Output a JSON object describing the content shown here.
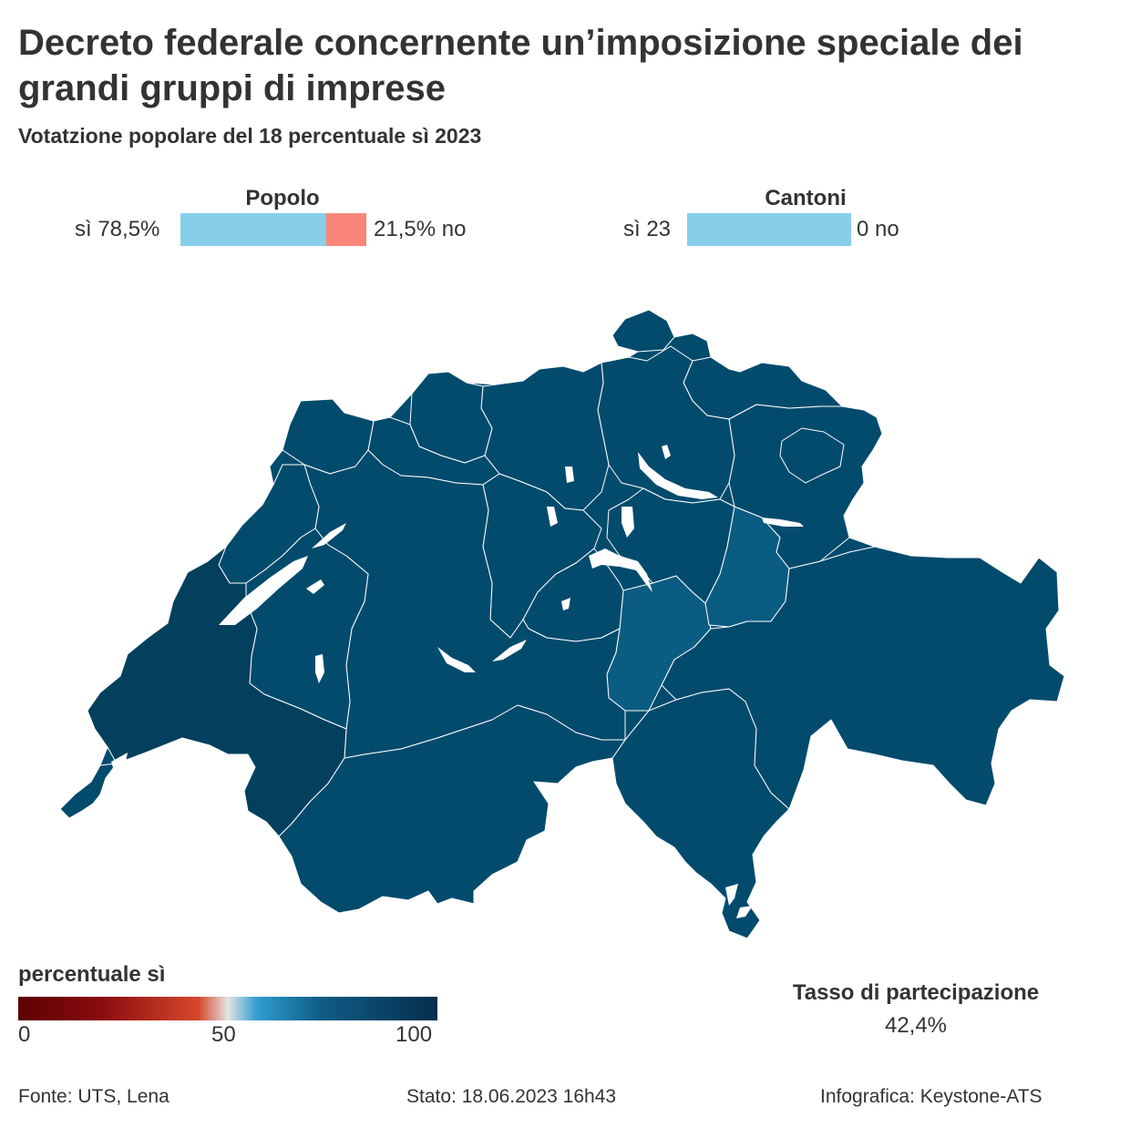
{
  "title": "Decreto federale concernente un’imposizione speciale dei grandi gruppi di imprese",
  "subtitle": "Votatzione popolare del 18 percentuale sì 2023",
  "people": {
    "heading": "Popolo",
    "yes_label": "sì 78,5%",
    "no_label": "21,5% no",
    "yes_percent": 78.5,
    "no_percent": 21.5
  },
  "cantons": {
    "heading": "Cantoni",
    "yes_label": "sì 23",
    "no_label": "0 no",
    "yes_count": 23,
    "no_count": 0
  },
  "colors": {
    "yes": "#87ceeb",
    "no": "#f98679",
    "map_main": "#024b6d",
    "map_lighter": "#0a5c82",
    "map_darker": "#03405e",
    "borders": "#ffffff"
  },
  "legend": {
    "title": "percentuale sì",
    "ticks": [
      "0",
      "50",
      "100"
    ]
  },
  "turnout": {
    "title": "Tasso di partecipazione",
    "value": "42,4%"
  },
  "footer": {
    "source": "Fonte: UTS, Lena",
    "status": "Stato: 18.06.2023 16h43",
    "credit": "Infografica: Keystone-ATS"
  }
}
